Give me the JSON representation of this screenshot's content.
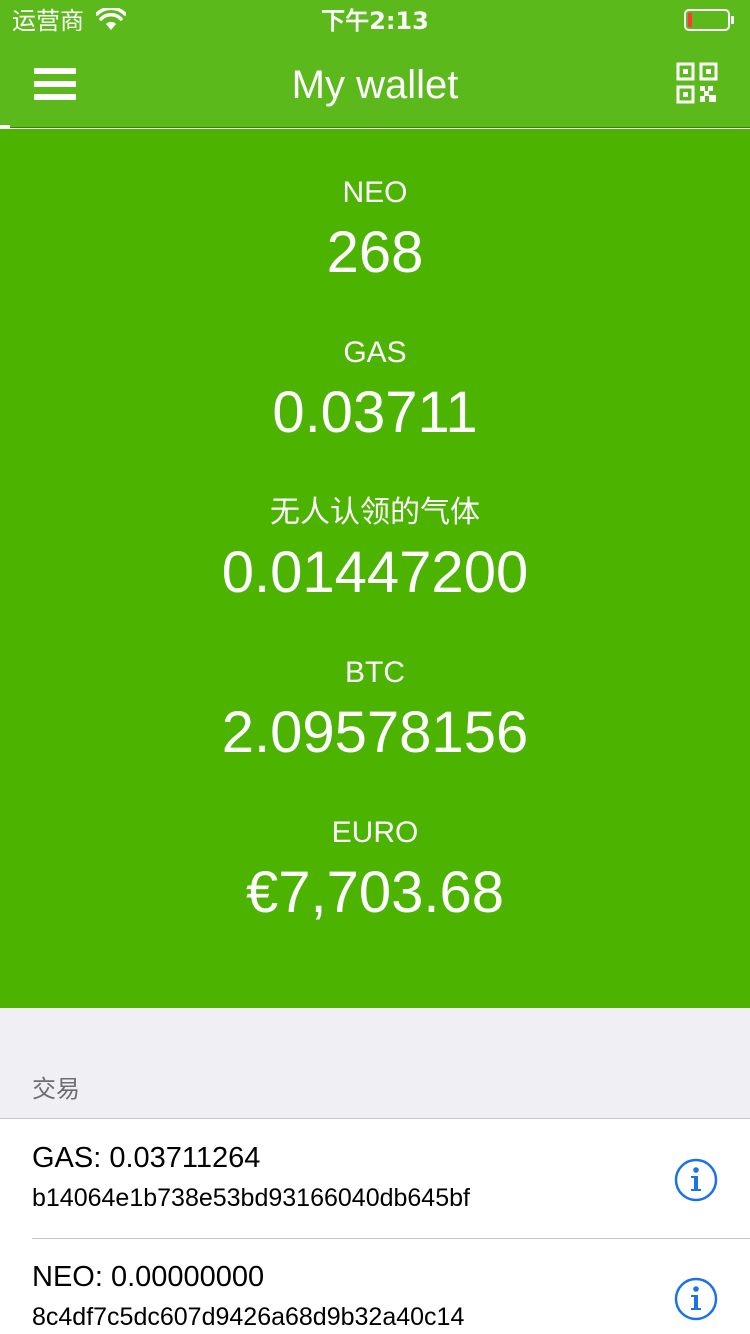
{
  "status_bar": {
    "carrier": "运营商",
    "time": "下午2:13",
    "icons": {
      "wifi": "wifi-icon",
      "battery": "battery-low-icon"
    }
  },
  "nav_bar": {
    "title": "My wallet",
    "icons": {
      "menu": "hamburger-menu-icon",
      "qr": "qr-code-icon"
    }
  },
  "balances": [
    {
      "label": "NEO",
      "value": "268"
    },
    {
      "label": "GAS",
      "value": "0.03711"
    },
    {
      "label": "无人认领的气体",
      "value": "0.01447200"
    },
    {
      "label": "BTC",
      "value": "2.09578156"
    },
    {
      "label": "EURO",
      "value": "€7,703.68"
    }
  ],
  "transactions": {
    "title": "交易",
    "items": [
      {
        "amount": "GAS: 0.03711264",
        "hash": "b14064e1b738e53bd93166040db645bf"
      },
      {
        "amount": "NEO: 0.00000000",
        "hash": "8c4df7c5dc607d9426a68d9b32a40c14"
      }
    ]
  },
  "colors": {
    "nav_green": "#5cb91b",
    "panel_green": "#4cb400",
    "info_blue": "#1a73e8",
    "battery_red": "#ff3b30"
  }
}
